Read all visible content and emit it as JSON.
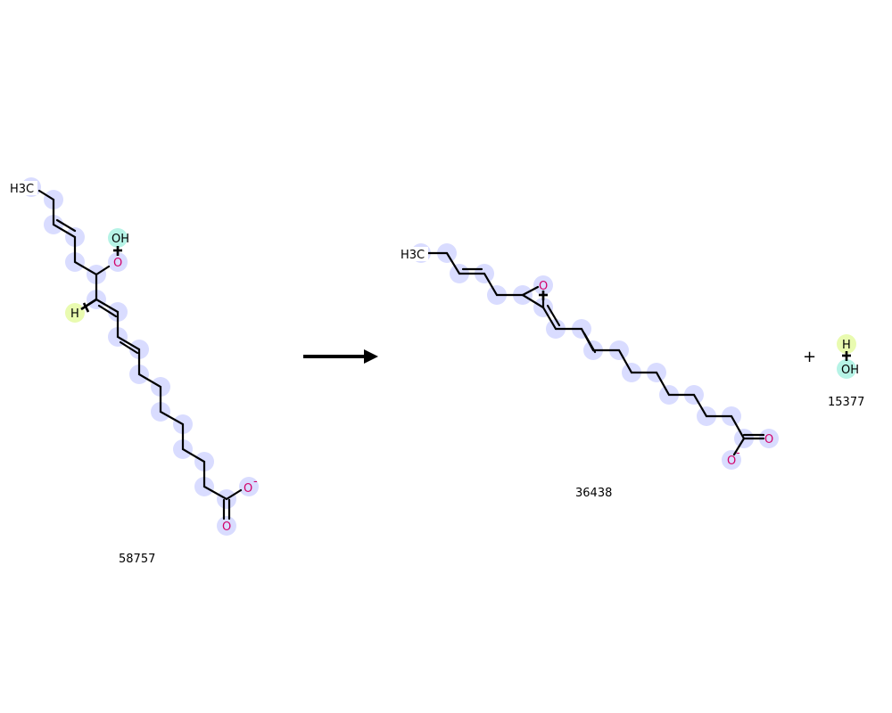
{
  "colors": {
    "bond": "#000000",
    "carbon": "#000000",
    "oxygen": "#d10069",
    "atom_highlight": "#d9dcff",
    "oxygen_highlight": "#b6f3e6",
    "hydrogen_highlight": "#e9fbb0"
  },
  "reactant": {
    "id": "58757",
    "labels": {
      "methyl": "H3C",
      "hydroxyl": "OH",
      "peroxy_o": "O",
      "hydrogen": "H",
      "carboxyl_o_minus": "O",
      "carboxyl_o": "O",
      "charge": "-"
    }
  },
  "arrow": {
    "icon": "reaction-arrow-icon"
  },
  "product_main": {
    "id": "36438",
    "labels": {
      "methyl": "H3C",
      "epoxide_o": "O",
      "carboxyl_o_minus": "O",
      "carboxyl_o": "O",
      "charge": "-"
    }
  },
  "plus_sign": "+",
  "product_water": {
    "id": "15377",
    "labels": {
      "hydrogen": "H",
      "hydroxyl": "OH"
    }
  }
}
